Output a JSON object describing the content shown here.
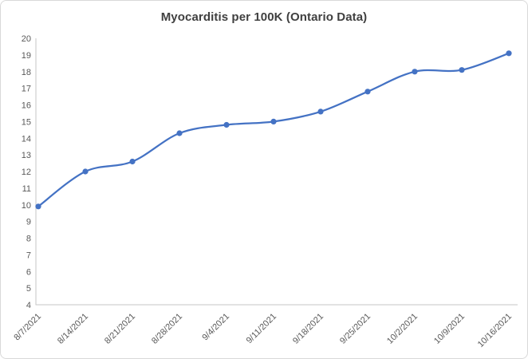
{
  "window": {
    "background_color": "#ffffff",
    "border_color": "#d9d9d9"
  },
  "chart_data": {
    "type": "line",
    "title": "Myocarditis per 100K (Ontario Data)",
    "categories": [
      "8/7/2021",
      "8/14/2021",
      "8/21/2021",
      "8/28/2021",
      "9/4/2021",
      "9/11/2021",
      "9/18/2021",
      "9/25/2021",
      "10/2/2021",
      "10/9/2021",
      "10/16/2021"
    ],
    "series": [
      {
        "name": "Myocarditis per 100K",
        "values": [
          9.9,
          12.0,
          12.6,
          14.3,
          14.8,
          15.0,
          15.6,
          16.8,
          18.0,
          18.1,
          19.1
        ]
      }
    ],
    "xlabel": "",
    "ylabel": "",
    "ylim": [
      4,
      20
    ],
    "ytick_step": 1,
    "x_label_rotation_deg": -45,
    "grid": false,
    "legend": "none",
    "smooth": true,
    "marker": "circle",
    "line_color": "#4472C4",
    "marker_color": "#4472C4",
    "axis_color": "#c6c6c6",
    "tick_label_color": "#595959",
    "title_color": "#404040"
  }
}
